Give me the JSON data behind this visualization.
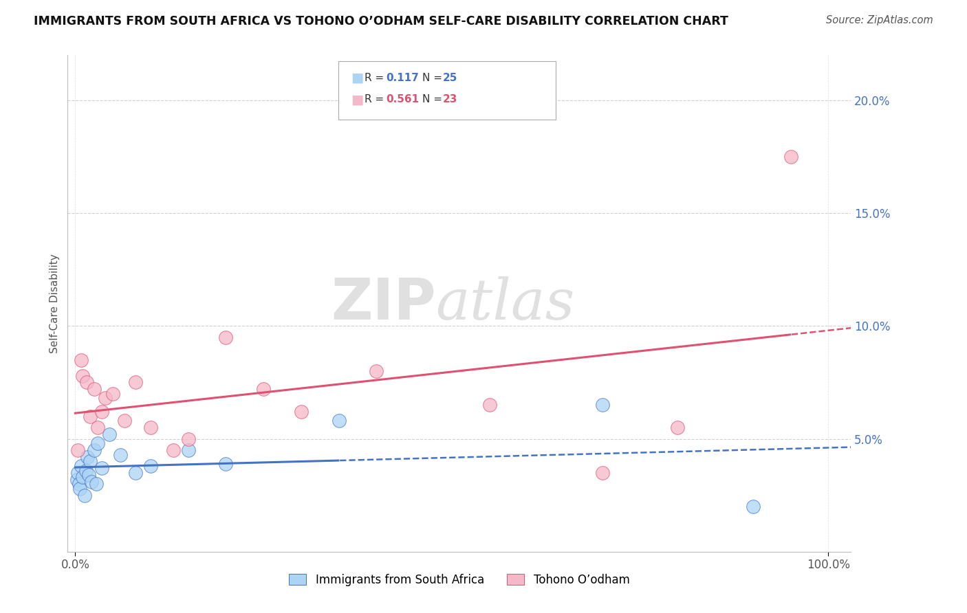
{
  "title": "IMMIGRANTS FROM SOUTH AFRICA VS TOHONO O’ODHAM SELF-CARE DISABILITY CORRELATION CHART",
  "source": "Source: ZipAtlas.com",
  "ylabel": "Self-Care Disability",
  "r_blue": 0.117,
  "n_blue": 25,
  "r_pink": 0.561,
  "n_pink": 23,
  "blue_scatter_x": [
    0.2,
    0.3,
    0.5,
    0.6,
    0.8,
    1.0,
    1.2,
    1.4,
    1.6,
    1.8,
    2.0,
    2.2,
    2.5,
    2.8,
    3.0,
    3.5,
    4.5,
    6.0,
    8.0,
    10.0,
    15.0,
    20.0,
    35.0,
    70.0,
    90.0
  ],
  "blue_scatter_y": [
    3.2,
    3.5,
    3.0,
    2.8,
    3.8,
    3.3,
    2.5,
    3.6,
    4.2,
    3.4,
    4.0,
    3.1,
    4.5,
    3.0,
    4.8,
    3.7,
    5.2,
    4.3,
    3.5,
    3.8,
    4.5,
    3.9,
    5.8,
    6.5,
    2.0
  ],
  "pink_scatter_x": [
    0.3,
    0.8,
    1.0,
    1.5,
    2.0,
    2.5,
    3.0,
    3.5,
    4.0,
    5.0,
    6.5,
    8.0,
    10.0,
    13.0,
    15.0,
    20.0,
    25.0,
    30.0,
    40.0,
    55.0,
    70.0,
    80.0,
    95.0
  ],
  "pink_scatter_y": [
    4.5,
    8.5,
    7.8,
    7.5,
    6.0,
    7.2,
    5.5,
    6.2,
    6.8,
    7.0,
    5.8,
    7.5,
    5.5,
    4.5,
    5.0,
    9.5,
    7.2,
    6.2,
    8.0,
    6.5,
    3.5,
    5.5,
    17.5
  ],
  "blue_color": "#acd4f5",
  "pink_color": "#f5b8c8",
  "blue_line_color": "#4472c4",
  "pink_line_color": "#e05070",
  "legend_label_blue": "Immigrants from South Africa",
  "legend_label_pink": "Tohono O’odham",
  "background_color": "#ffffff",
  "grid_color": "#d0d0d0"
}
